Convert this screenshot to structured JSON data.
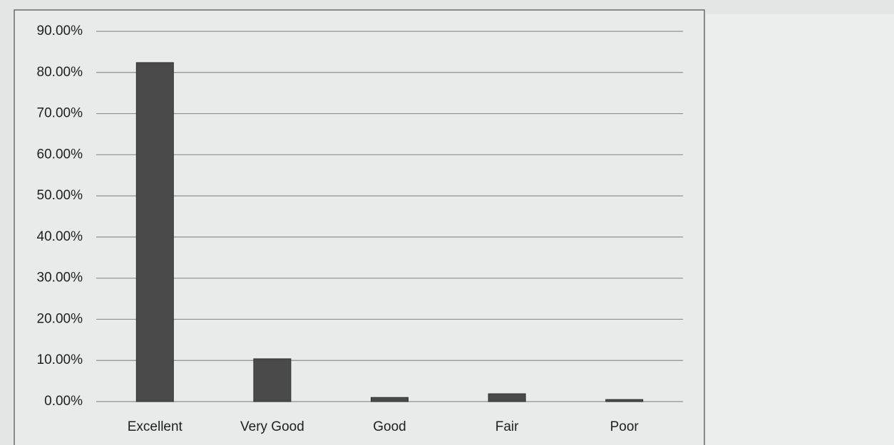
{
  "chart_data": {
    "type": "bar",
    "categories": [
      "Excellent",
      "Very Good",
      "Good",
      "Fair",
      "Poor"
    ],
    "values": [
      82.4,
      10.4,
      1.0,
      1.9,
      0.5
    ],
    "color": "#4a4a4a",
    "ylim": [
      0,
      90
    ],
    "yticks": [
      {
        "value": 0,
        "label": "0.00%"
      },
      {
        "value": 10,
        "label": "10.00%"
      },
      {
        "value": 20,
        "label": "20.00%"
      },
      {
        "value": 30,
        "label": "30.00%"
      },
      {
        "value": 40,
        "label": "40.00%"
      },
      {
        "value": 50,
        "label": "50.00%"
      },
      {
        "value": 60,
        "label": "60.00%"
      },
      {
        "value": 70,
        "label": "70.00%"
      },
      {
        "value": 80,
        "label": "80.00%"
      },
      {
        "value": 90,
        "label": "90.00%"
      }
    ],
    "grid": true
  }
}
